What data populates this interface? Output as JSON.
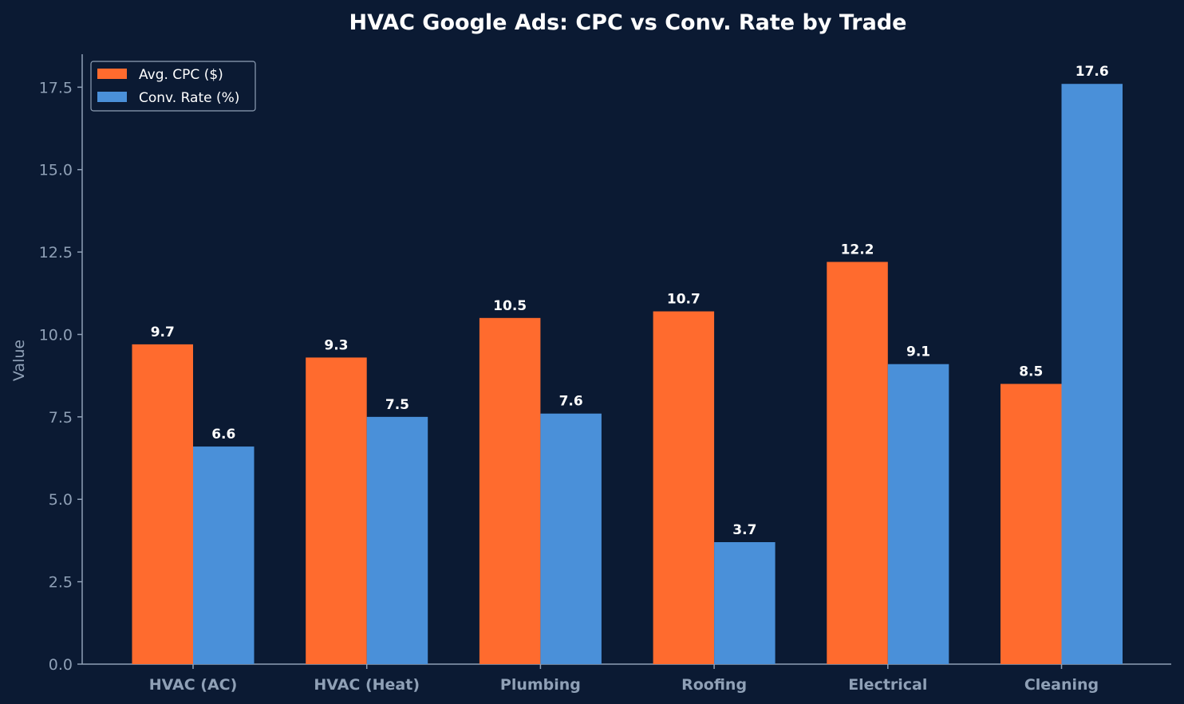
{
  "chart_data": {
    "type": "bar",
    "title": "HVAC Google Ads: CPC vs Conv. Rate by Trade",
    "xlabel": "",
    "ylabel": "Value",
    "ylim": [
      0,
      18.5
    ],
    "yticks": [
      0.0,
      2.5,
      5.0,
      7.5,
      10.0,
      12.5,
      15.0,
      17.5
    ],
    "categories": [
      "HVAC (AC)",
      "HVAC (Heat)",
      "Plumbing",
      "Roofing",
      "Electrical",
      "Cleaning"
    ],
    "series": [
      {
        "name": "Avg. CPC ($)",
        "color": "#ff6b2e",
        "values": [
          9.7,
          9.3,
          10.5,
          10.7,
          12.2,
          8.5
        ]
      },
      {
        "name": "Conv. Rate (%)",
        "color": "#4a90d9",
        "values": [
          6.6,
          7.5,
          7.6,
          3.7,
          9.1,
          17.6
        ]
      }
    ],
    "grid": false,
    "legend": "top-left",
    "colors": {
      "background": "#0b1a33",
      "axis": "#8fa0b6",
      "text": "#ffffff"
    }
  }
}
